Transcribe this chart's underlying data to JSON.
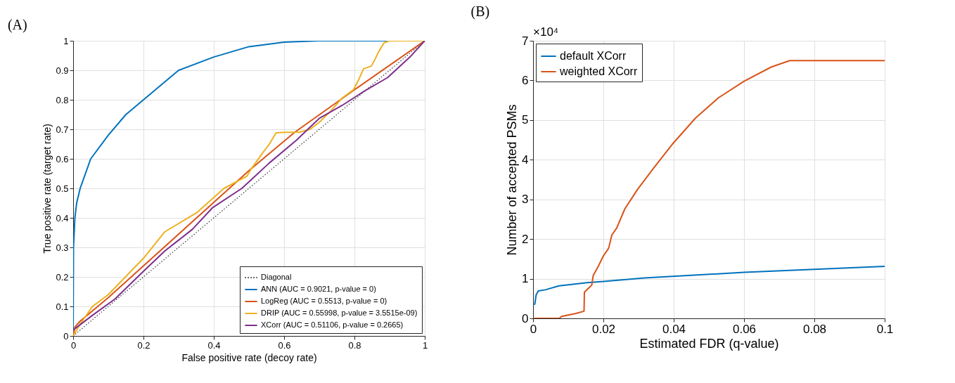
{
  "chart_data": [
    {
      "type": "line",
      "title": "(A)",
      "xlabel": "False positive rate (decoy rate)",
      "ylabel": "True positive rate (target rate)",
      "xlim": [
        0,
        1
      ],
      "ylim": [
        0,
        1
      ],
      "xticks": [
        0,
        0.2,
        0.4,
        0.6,
        0.8,
        1
      ],
      "yticks": [
        0,
        0.1,
        0.2,
        0.3,
        0.4,
        0.5,
        0.6,
        0.7,
        0.8,
        0.9,
        1
      ],
      "grid": true,
      "legend": "bottom right",
      "series": [
        {
          "name": "Diagonal",
          "color": "#333333",
          "line_style": "dotted",
          "x": [
            0,
            1
          ],
          "values": [
            0,
            1
          ]
        },
        {
          "name": "ANN (AUC = 0.9021, p-value = 0)",
          "color": "#0072bd",
          "x": [
            0,
            0.001,
            0.005,
            0.01,
            0.02,
            0.05,
            0.1,
            0.15,
            0.2,
            0.3,
            0.4,
            0.5,
            0.6,
            0.7,
            0.8,
            1
          ],
          "values": [
            0,
            0.3,
            0.4,
            0.45,
            0.5,
            0.6,
            0.68,
            0.75,
            0.8,
            0.9,
            0.945,
            0.98,
            0.995,
            1,
            1,
            1
          ]
        },
        {
          "name": "LogReg (AUC = 0.5513, p-value = 0)",
          "color": "#d95319",
          "x": [
            0,
            0.005,
            0.02,
            0.1,
            0.5,
            0.63,
            0.8,
            1
          ],
          "values": [
            0,
            0.03,
            0.05,
            0.13,
            0.56,
            0.69,
            0.834,
            1
          ]
        },
        {
          "name": "DRIP (AUC = 0.55998, p-value = 3.5515e-09)",
          "color": "#edb120",
          "x": [
            0,
            0.02,
            0.055,
            0.1,
            0.2,
            0.261,
            0.313,
            0.352,
            0.429,
            0.494,
            0.506,
            0.539,
            0.558,
            0.577,
            0.603,
            0.642,
            0.674,
            0.7,
            0.732,
            0.765,
            0.797,
            0.81,
            0.826,
            0.848,
            0.858,
            0.868,
            0.884,
            0.9,
            1
          ],
          "values": [
            0,
            0.04,
            0.1,
            0.14,
            0.263,
            0.353,
            0.39,
            0.418,
            0.5,
            0.541,
            0.565,
            0.62,
            0.65,
            0.688,
            0.69,
            0.69,
            0.7,
            0.724,
            0.761,
            0.806,
            0.834,
            0.863,
            0.905,
            0.914,
            0.936,
            0.961,
            0.993,
            1,
            1
          ]
        },
        {
          "name": "XCorr (AUC = 0.51106, p-value = 0.2665)",
          "color": "#7e2f8e",
          "x": [
            0,
            0.055,
            0.119,
            0.2,
            0.261,
            0.339,
            0.397,
            0.48,
            0.558,
            0.635,
            0.7,
            0.765,
            0.829,
            0.894,
            0.958,
            1
          ],
          "values": [
            0.02,
            0.07,
            0.125,
            0.219,
            0.288,
            0.361,
            0.435,
            0.5,
            0.586,
            0.663,
            0.737,
            0.781,
            0.83,
            0.875,
            0.945,
            1
          ]
        }
      ]
    },
    {
      "type": "line",
      "title": "(B)",
      "xlabel": "Estimated FDR (q-value)",
      "ylabel": "Number of accepted PSMs",
      "annotations": [
        "×10⁴"
      ],
      "xlim": [
        0,
        0.1
      ],
      "ylim": [
        0,
        7
      ],
      "xticks": [
        0,
        0.02,
        0.04,
        0.06,
        0.08,
        0.1
      ],
      "yticks": [
        0,
        1,
        2,
        3,
        4,
        5,
        6,
        7
      ],
      "grid": true,
      "legend": "top left",
      "series": [
        {
          "name": "default XCorr",
          "color": "#0072bd",
          "x": [
            0,
            0.0005,
            0.0009,
            0.0015,
            0.0035,
            0.0074,
            0.0153,
            0.02,
            0.0317,
            0.06,
            0.1
          ],
          "values": [
            0.35,
            0.36,
            0.6,
            0.69,
            0.72,
            0.82,
            0.9,
            0.93,
            1.02,
            1.16,
            1.31
          ]
        },
        {
          "name": "weighted XCorr",
          "color": "#d95319",
          "x": [
            0,
            0.0075,
            0.0081,
            0.012,
            0.0145,
            0.0146,
            0.016,
            0.0167,
            0.0171,
            0.0186,
            0.0199,
            0.0215,
            0.0224,
            0.0238,
            0.0261,
            0.0297,
            0.0343,
            0.0396,
            0.0462,
            0.0527,
            0.06,
            0.0678,
            0.073,
            0.1
          ],
          "values": [
            0,
            0,
            0.05,
            0.12,
            0.18,
            0.66,
            0.78,
            0.84,
            1.08,
            1.32,
            1.56,
            1.77,
            2.1,
            2.28,
            2.76,
            3.25,
            3.79,
            4.39,
            5.05,
            5.56,
            5.98,
            6.34,
            6.5,
            6.5
          ]
        }
      ]
    }
  ]
}
